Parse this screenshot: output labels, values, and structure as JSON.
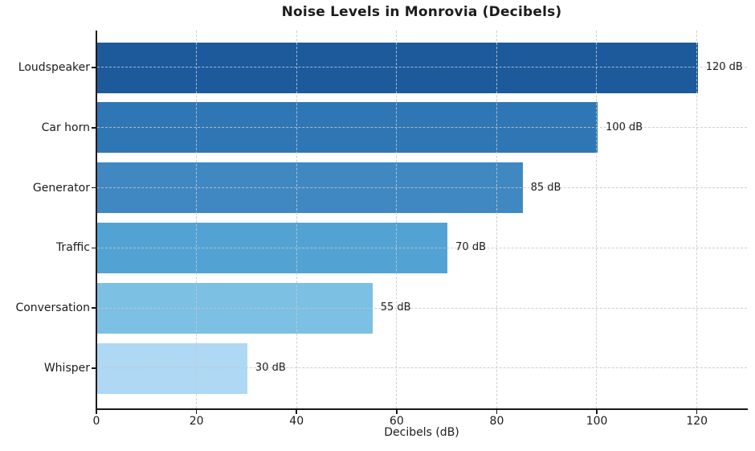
{
  "chart_data": {
    "type": "bar",
    "orientation": "horizontal",
    "title": "Noise Levels in Monrovia (Decibels)",
    "xlabel": "Decibels (dB)",
    "ylabel": "",
    "categories": [
      "Loudspeaker",
      "Car horn",
      "Generator",
      "Traffic",
      "Conversation",
      "Whisper"
    ],
    "values": [
      120,
      100,
      85,
      70,
      55,
      30
    ],
    "value_labels": [
      "120 dB",
      "100 dB",
      "85 dB",
      "70 dB",
      "55 dB",
      "30 dB"
    ],
    "value_unit": "dB",
    "xticks": [
      0,
      20,
      40,
      60,
      80,
      100,
      120
    ],
    "xlim": [
      0,
      130
    ],
    "grid": true,
    "grid_style": "dashed",
    "grid_color": "#c8c8c8",
    "legend": null,
    "bar_colors": [
      "#1c5a9c",
      "#2f76b4",
      "#3f88c2",
      "#52a3d4",
      "#7cc0e4",
      "#aed8f4"
    ],
    "spine_color": "#1a1a1a",
    "text_color": "#1c1c1c",
    "background_color": "#ffffff"
  }
}
